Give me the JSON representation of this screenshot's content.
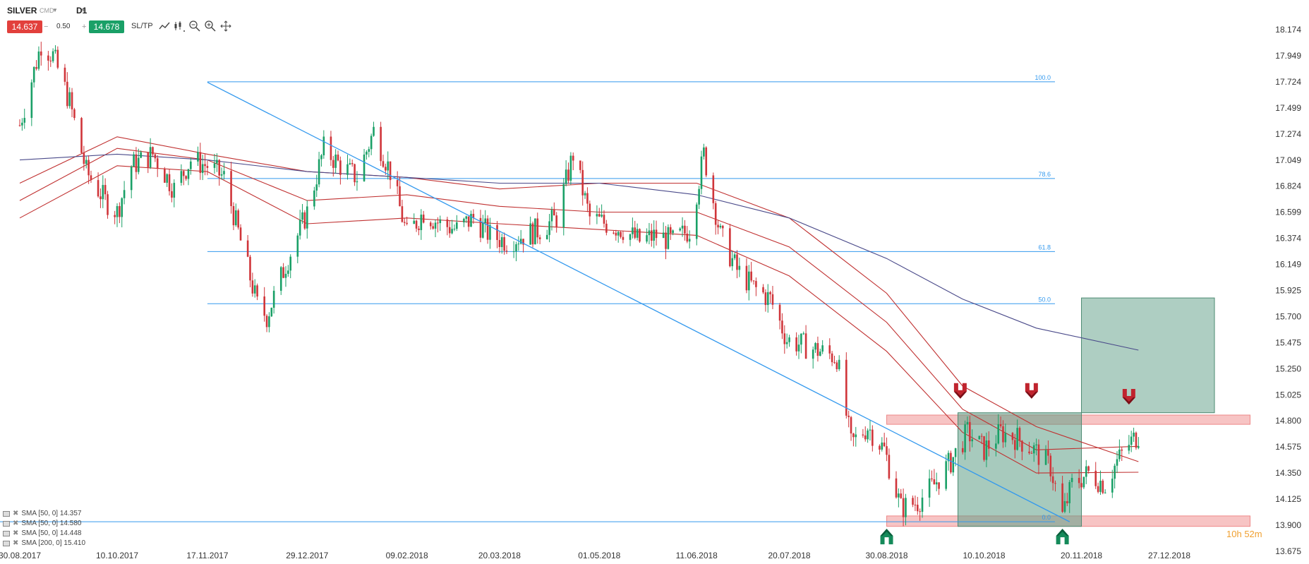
{
  "header": {
    "symbol": "SILVER",
    "symbol_type": "CMD",
    "timeframe": "D1",
    "bid": "14.637",
    "step_minus": "−",
    "spread": "0.50",
    "step_plus": "+",
    "ask": "14.678",
    "sltp_label": "SL/TP"
  },
  "timer": {
    "hours": "10h",
    "minutes": "52m"
  },
  "legend": [
    {
      "label": "SMA [50, 0] 14.357"
    },
    {
      "label": "SMA [50, 0] 14.580"
    },
    {
      "label": "SMA [50, 0] 14.448"
    },
    {
      "label": "SMA [200, 0] 15.410"
    }
  ],
  "colors": {
    "up": "#1aa067",
    "down": "#d0353a",
    "ma_red": "#c03030",
    "ma_blue": "#4a4a8a",
    "fib": "#3399ee",
    "zone_red": "#f4b0b0",
    "zone_green": "#5e9e86"
  },
  "chart_data": {
    "type": "candlestick",
    "title": "SILVER D1",
    "ylim": [
      13.675,
      18.174
    ],
    "y_ticks": [
      "18.174",
      "17.949",
      "17.724",
      "17.499",
      "17.274",
      "17.049",
      "16.824",
      "16.599",
      "16.374",
      "16.149",
      "15.925",
      "15.700",
      "15.475",
      "15.250",
      "15.025",
      "14.800",
      "14.575",
      "14.350",
      "14.125",
      "13.900",
      "13.675"
    ],
    "x_ticks": [
      "30.08.2017",
      "10.10.2017",
      "17.11.2017",
      "29.12.2017",
      "09.02.2018",
      "20.03.2018",
      "01.05.2018",
      "11.06.2018",
      "20.07.2018",
      "30.08.2018",
      "10.10.2018",
      "20.11.2018",
      "27.12.2018"
    ],
    "fib_levels": [
      {
        "label": "100.0",
        "value": 17.724
      },
      {
        "label": "78.6",
        "value": 16.89
      },
      {
        "label": "61.8",
        "value": 16.26
      },
      {
        "label": "50.0",
        "value": 15.81
      },
      {
        "label": "0.0",
        "value": 13.93
      }
    ],
    "trendline": {
      "from": {
        "date": "2017-11-17",
        "price": 17.72
      },
      "to": {
        "date": "2018-11-15",
        "price": 13.93
      }
    },
    "zones": [
      {
        "kind": "resistance",
        "from": "2018-08-30",
        "to": "2019-01-30",
        "low": 14.77,
        "high": 14.85
      },
      {
        "kind": "support",
        "from": "2018-08-30",
        "to": "2019-01-30",
        "low": 13.89,
        "high": 13.98
      },
      {
        "kind": "range",
        "from": "2018-09-29",
        "to": "2018-11-20",
        "low": 13.89,
        "high": 14.87
      },
      {
        "kind": "target",
        "from": "2018-11-20",
        "to": "2019-01-15",
        "low": 14.87,
        "high": 15.86
      }
    ],
    "arrows": [
      {
        "dir": "down",
        "date": "2018-09-30",
        "price": 15.04
      },
      {
        "dir": "down",
        "date": "2018-10-30",
        "price": 15.04
      },
      {
        "dir": "down",
        "date": "2018-12-10",
        "price": 14.99
      },
      {
        "dir": "up",
        "date": "2018-08-30",
        "price": 13.82
      },
      {
        "dir": "up",
        "date": "2018-11-12",
        "price": 13.82
      }
    ],
    "price_path": [
      [
        "2017-08-30",
        17.35
      ],
      [
        "2017-09-08",
        18.05
      ],
      [
        "2017-09-13",
        17.95
      ],
      [
        "2017-09-20",
        17.55
      ],
      [
        "2017-09-27",
        16.95
      ],
      [
        "2017-10-05",
        16.7
      ],
      [
        "2017-10-10",
        16.6
      ],
      [
        "2017-10-16",
        17.0
      ],
      [
        "2017-10-25",
        17.1
      ],
      [
        "2017-11-03",
        16.8
      ],
      [
        "2017-11-10",
        17.05
      ],
      [
        "2017-11-17",
        17.0
      ],
      [
        "2017-11-24",
        16.9
      ],
      [
        "2017-12-01",
        16.35
      ],
      [
        "2017-12-08",
        15.8
      ],
      [
        "2017-12-12",
        15.7
      ],
      [
        "2017-12-20",
        16.15
      ],
      [
        "2017-12-29",
        16.6
      ],
      [
        "2018-01-05",
        17.15
      ],
      [
        "2018-01-12",
        17.0
      ],
      [
        "2018-01-19",
        16.9
      ],
      [
        "2018-01-26",
        17.3
      ],
      [
        "2018-02-02",
        16.95
      ],
      [
        "2018-02-09",
        16.4
      ],
      [
        "2018-02-16",
        16.6
      ],
      [
        "2018-02-23",
        16.5
      ],
      [
        "2018-03-02",
        16.45
      ],
      [
        "2018-03-09",
        16.55
      ],
      [
        "2018-03-16",
        16.4
      ],
      [
        "2018-03-23",
        16.35
      ],
      [
        "2018-03-30",
        16.4
      ],
      [
        "2018-04-06",
        16.45
      ],
      [
        "2018-04-13",
        16.55
      ],
      [
        "2018-04-20",
        17.1
      ],
      [
        "2018-04-27",
        16.55
      ],
      [
        "2018-05-04",
        16.5
      ],
      [
        "2018-05-11",
        16.45
      ],
      [
        "2018-05-18",
        16.35
      ],
      [
        "2018-05-25",
        16.4
      ],
      [
        "2018-06-01",
        16.35
      ],
      [
        "2018-06-08",
        16.45
      ],
      [
        "2018-06-14",
        17.1
      ],
      [
        "2018-06-21",
        16.4
      ],
      [
        "2018-06-28",
        16.1
      ],
      [
        "2018-07-05",
        15.95
      ],
      [
        "2018-07-12",
        15.85
      ],
      [
        "2018-07-19",
        15.5
      ],
      [
        "2018-07-26",
        15.45
      ],
      [
        "2018-08-02",
        15.4
      ],
      [
        "2018-08-09",
        15.35
      ],
      [
        "2018-08-15",
        14.6
      ],
      [
        "2018-08-22",
        14.75
      ],
      [
        "2018-08-29",
        14.55
      ],
      [
        "2018-09-05",
        14.05
      ],
      [
        "2018-09-12",
        14.1
      ],
      [
        "2018-09-19",
        14.25
      ],
      [
        "2018-09-26",
        14.45
      ],
      [
        "2018-10-03",
        14.7
      ],
      [
        "2018-10-10",
        14.55
      ],
      [
        "2018-10-17",
        14.7
      ],
      [
        "2018-10-24",
        14.65
      ],
      [
        "2018-10-31",
        14.55
      ],
      [
        "2018-11-07",
        14.4
      ],
      [
        "2018-11-12",
        13.98
      ],
      [
        "2018-11-16",
        14.25
      ],
      [
        "2018-11-23",
        14.35
      ],
      [
        "2018-11-30",
        14.25
      ],
      [
        "2018-12-05",
        14.45
      ],
      [
        "2018-12-10",
        14.6
      ],
      [
        "2018-12-14",
        14.68
      ]
    ],
    "series": [
      {
        "name": "SMA [50, 0] 14.357",
        "color": "#c03030",
        "values": [
          [
            "2017-08-30",
            16.55
          ],
          [
            "2017-10-10",
            17.0
          ],
          [
            "2017-11-17",
            16.95
          ],
          [
            "2017-12-29",
            16.5
          ],
          [
            "2018-02-09",
            16.55
          ],
          [
            "2018-03-20",
            16.5
          ],
          [
            "2018-05-01",
            16.45
          ],
          [
            "2018-06-11",
            16.4
          ],
          [
            "2018-07-20",
            16.05
          ],
          [
            "2018-08-30",
            15.4
          ],
          [
            "2018-10-01",
            14.7
          ],
          [
            "2018-11-01",
            14.35
          ],
          [
            "2018-12-14",
            14.357
          ]
        ]
      },
      {
        "name": "SMA [50, 0] 14.580",
        "color": "#c03030",
        "values": [
          [
            "2017-08-30",
            16.7
          ],
          [
            "2017-10-10",
            17.15
          ],
          [
            "2017-11-17",
            17.05
          ],
          [
            "2017-12-29",
            16.7
          ],
          [
            "2018-02-09",
            16.75
          ],
          [
            "2018-03-20",
            16.65
          ],
          [
            "2018-05-01",
            16.6
          ],
          [
            "2018-06-11",
            16.6
          ],
          [
            "2018-07-20",
            16.3
          ],
          [
            "2018-08-30",
            15.65
          ],
          [
            "2018-10-01",
            14.9
          ],
          [
            "2018-11-01",
            14.55
          ],
          [
            "2018-12-14",
            14.58
          ]
        ]
      },
      {
        "name": "SMA [50, 0] 14.448",
        "color": "#c03030",
        "values": [
          [
            "2017-08-30",
            16.85
          ],
          [
            "2017-10-10",
            17.25
          ],
          [
            "2017-11-17",
            17.1
          ],
          [
            "2017-12-29",
            16.95
          ],
          [
            "2018-02-09",
            16.9
          ],
          [
            "2018-03-20",
            16.8
          ],
          [
            "2018-05-01",
            16.85
          ],
          [
            "2018-06-11",
            16.85
          ],
          [
            "2018-07-20",
            16.55
          ],
          [
            "2018-08-30",
            15.9
          ],
          [
            "2018-10-01",
            15.1
          ],
          [
            "2018-11-01",
            14.75
          ],
          [
            "2018-12-14",
            14.448
          ]
        ]
      },
      {
        "name": "SMA [200, 0] 15.410",
        "color": "#4a4a8a",
        "values": [
          [
            "2017-08-30",
            17.05
          ],
          [
            "2017-10-10",
            17.1
          ],
          [
            "2017-11-17",
            17.05
          ],
          [
            "2017-12-29",
            16.95
          ],
          [
            "2018-02-09",
            16.9
          ],
          [
            "2018-03-20",
            16.85
          ],
          [
            "2018-05-01",
            16.85
          ],
          [
            "2018-06-11",
            16.75
          ],
          [
            "2018-07-20",
            16.55
          ],
          [
            "2018-08-30",
            16.2
          ],
          [
            "2018-10-01",
            15.85
          ],
          [
            "2018-11-01",
            15.6
          ],
          [
            "2018-12-14",
            15.41
          ]
        ]
      }
    ]
  }
}
